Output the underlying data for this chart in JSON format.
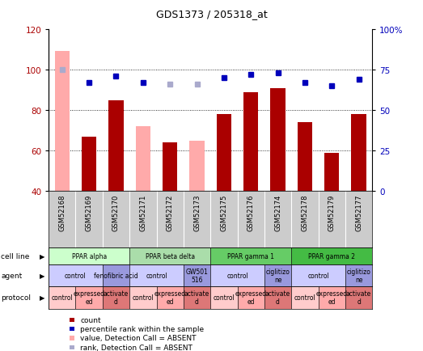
{
  "title": "GDS1373 / 205318_at",
  "samples": [
    "GSM52168",
    "GSM52169",
    "GSM52170",
    "GSM52171",
    "GSM52172",
    "GSM52173",
    "GSM52175",
    "GSM52176",
    "GSM52174",
    "GSM52178",
    "GSM52179",
    "GSM52177"
  ],
  "bar_values": [
    109,
    67,
    85,
    72,
    64,
    65,
    78,
    89,
    91,
    74,
    59,
    78
  ],
  "bar_absent": [
    true,
    false,
    false,
    true,
    false,
    true,
    false,
    false,
    false,
    false,
    false,
    false
  ],
  "rank_values": [
    75,
    67,
    71,
    67,
    66,
    66,
    70,
    72,
    73,
    67,
    65,
    69
  ],
  "rank_absent": [
    true,
    false,
    false,
    false,
    true,
    true,
    false,
    false,
    false,
    false,
    false,
    false
  ],
  "ylim_left": [
    40,
    120
  ],
  "ylim_right": [
    0,
    100
  ],
  "left_ticks": [
    40,
    60,
    80,
    100,
    120
  ],
  "right_ticks": [
    0,
    25,
    50,
    75,
    100
  ],
  "right_tick_labels": [
    "0",
    "25",
    "50",
    "75",
    "100%"
  ],
  "bar_color_present": "#aa0000",
  "bar_color_absent": "#ffaaaa",
  "rank_color_present": "#0000bb",
  "rank_color_absent": "#aaaacc",
  "cell_lines": [
    {
      "label": "PPAR alpha",
      "start": 0,
      "end": 3,
      "color": "#ccffcc"
    },
    {
      "label": "PPAR beta delta",
      "start": 3,
      "end": 6,
      "color": "#aaddaa"
    },
    {
      "label": "PPAR gamma 1",
      "start": 6,
      "end": 9,
      "color": "#66cc66"
    },
    {
      "label": "PPAR gamma 2",
      "start": 9,
      "end": 12,
      "color": "#44bb44"
    }
  ],
  "agents": [
    {
      "label": "control",
      "start": 0,
      "end": 2,
      "color": "#ccccff"
    },
    {
      "label": "fenofibric acid",
      "start": 2,
      "end": 3,
      "color": "#9999dd"
    },
    {
      "label": "control",
      "start": 3,
      "end": 5,
      "color": "#ccccff"
    },
    {
      "label": "GW501\n516",
      "start": 5,
      "end": 6,
      "color": "#9999dd"
    },
    {
      "label": "control",
      "start": 6,
      "end": 8,
      "color": "#ccccff"
    },
    {
      "label": "ciglitizo\nne",
      "start": 8,
      "end": 9,
      "color": "#9999dd"
    },
    {
      "label": "control",
      "start": 9,
      "end": 11,
      "color": "#ccccff"
    },
    {
      "label": "ciglitizo\nne",
      "start": 11,
      "end": 12,
      "color": "#9999dd"
    }
  ],
  "protocols": [
    {
      "label": "control",
      "start": 0,
      "end": 1,
      "color": "#ffcccc"
    },
    {
      "label": "expressed\ned",
      "start": 1,
      "end": 2,
      "color": "#ffaaaa"
    },
    {
      "label": "activate\nd",
      "start": 2,
      "end": 3,
      "color": "#dd7777"
    },
    {
      "label": "control",
      "start": 3,
      "end": 4,
      "color": "#ffcccc"
    },
    {
      "label": "expressed\ned",
      "start": 4,
      "end": 5,
      "color": "#ffaaaa"
    },
    {
      "label": "activate\nd",
      "start": 5,
      "end": 6,
      "color": "#dd7777"
    },
    {
      "label": "control",
      "start": 6,
      "end": 7,
      "color": "#ffcccc"
    },
    {
      "label": "expressed\ned",
      "start": 7,
      "end": 8,
      "color": "#ffaaaa"
    },
    {
      "label": "activate\nd",
      "start": 8,
      "end": 9,
      "color": "#dd7777"
    },
    {
      "label": "control",
      "start": 9,
      "end": 10,
      "color": "#ffcccc"
    },
    {
      "label": "expressed\ned",
      "start": 10,
      "end": 11,
      "color": "#ffaaaa"
    },
    {
      "label": "activate\nd",
      "start": 11,
      "end": 12,
      "color": "#dd7777"
    }
  ],
  "row_labels": [
    "cell line",
    "agent",
    "protocol"
  ],
  "legend_items": [
    {
      "label": "count",
      "color": "#aa0000"
    },
    {
      "label": "percentile rank within the sample",
      "color": "#0000bb"
    },
    {
      "label": "value, Detection Call = ABSENT",
      "color": "#ffaaaa"
    },
    {
      "label": "rank, Detection Call = ABSENT",
      "color": "#aaaacc"
    }
  ],
  "sample_bg_color": "#cccccc",
  "fig_bg": "#ffffff"
}
